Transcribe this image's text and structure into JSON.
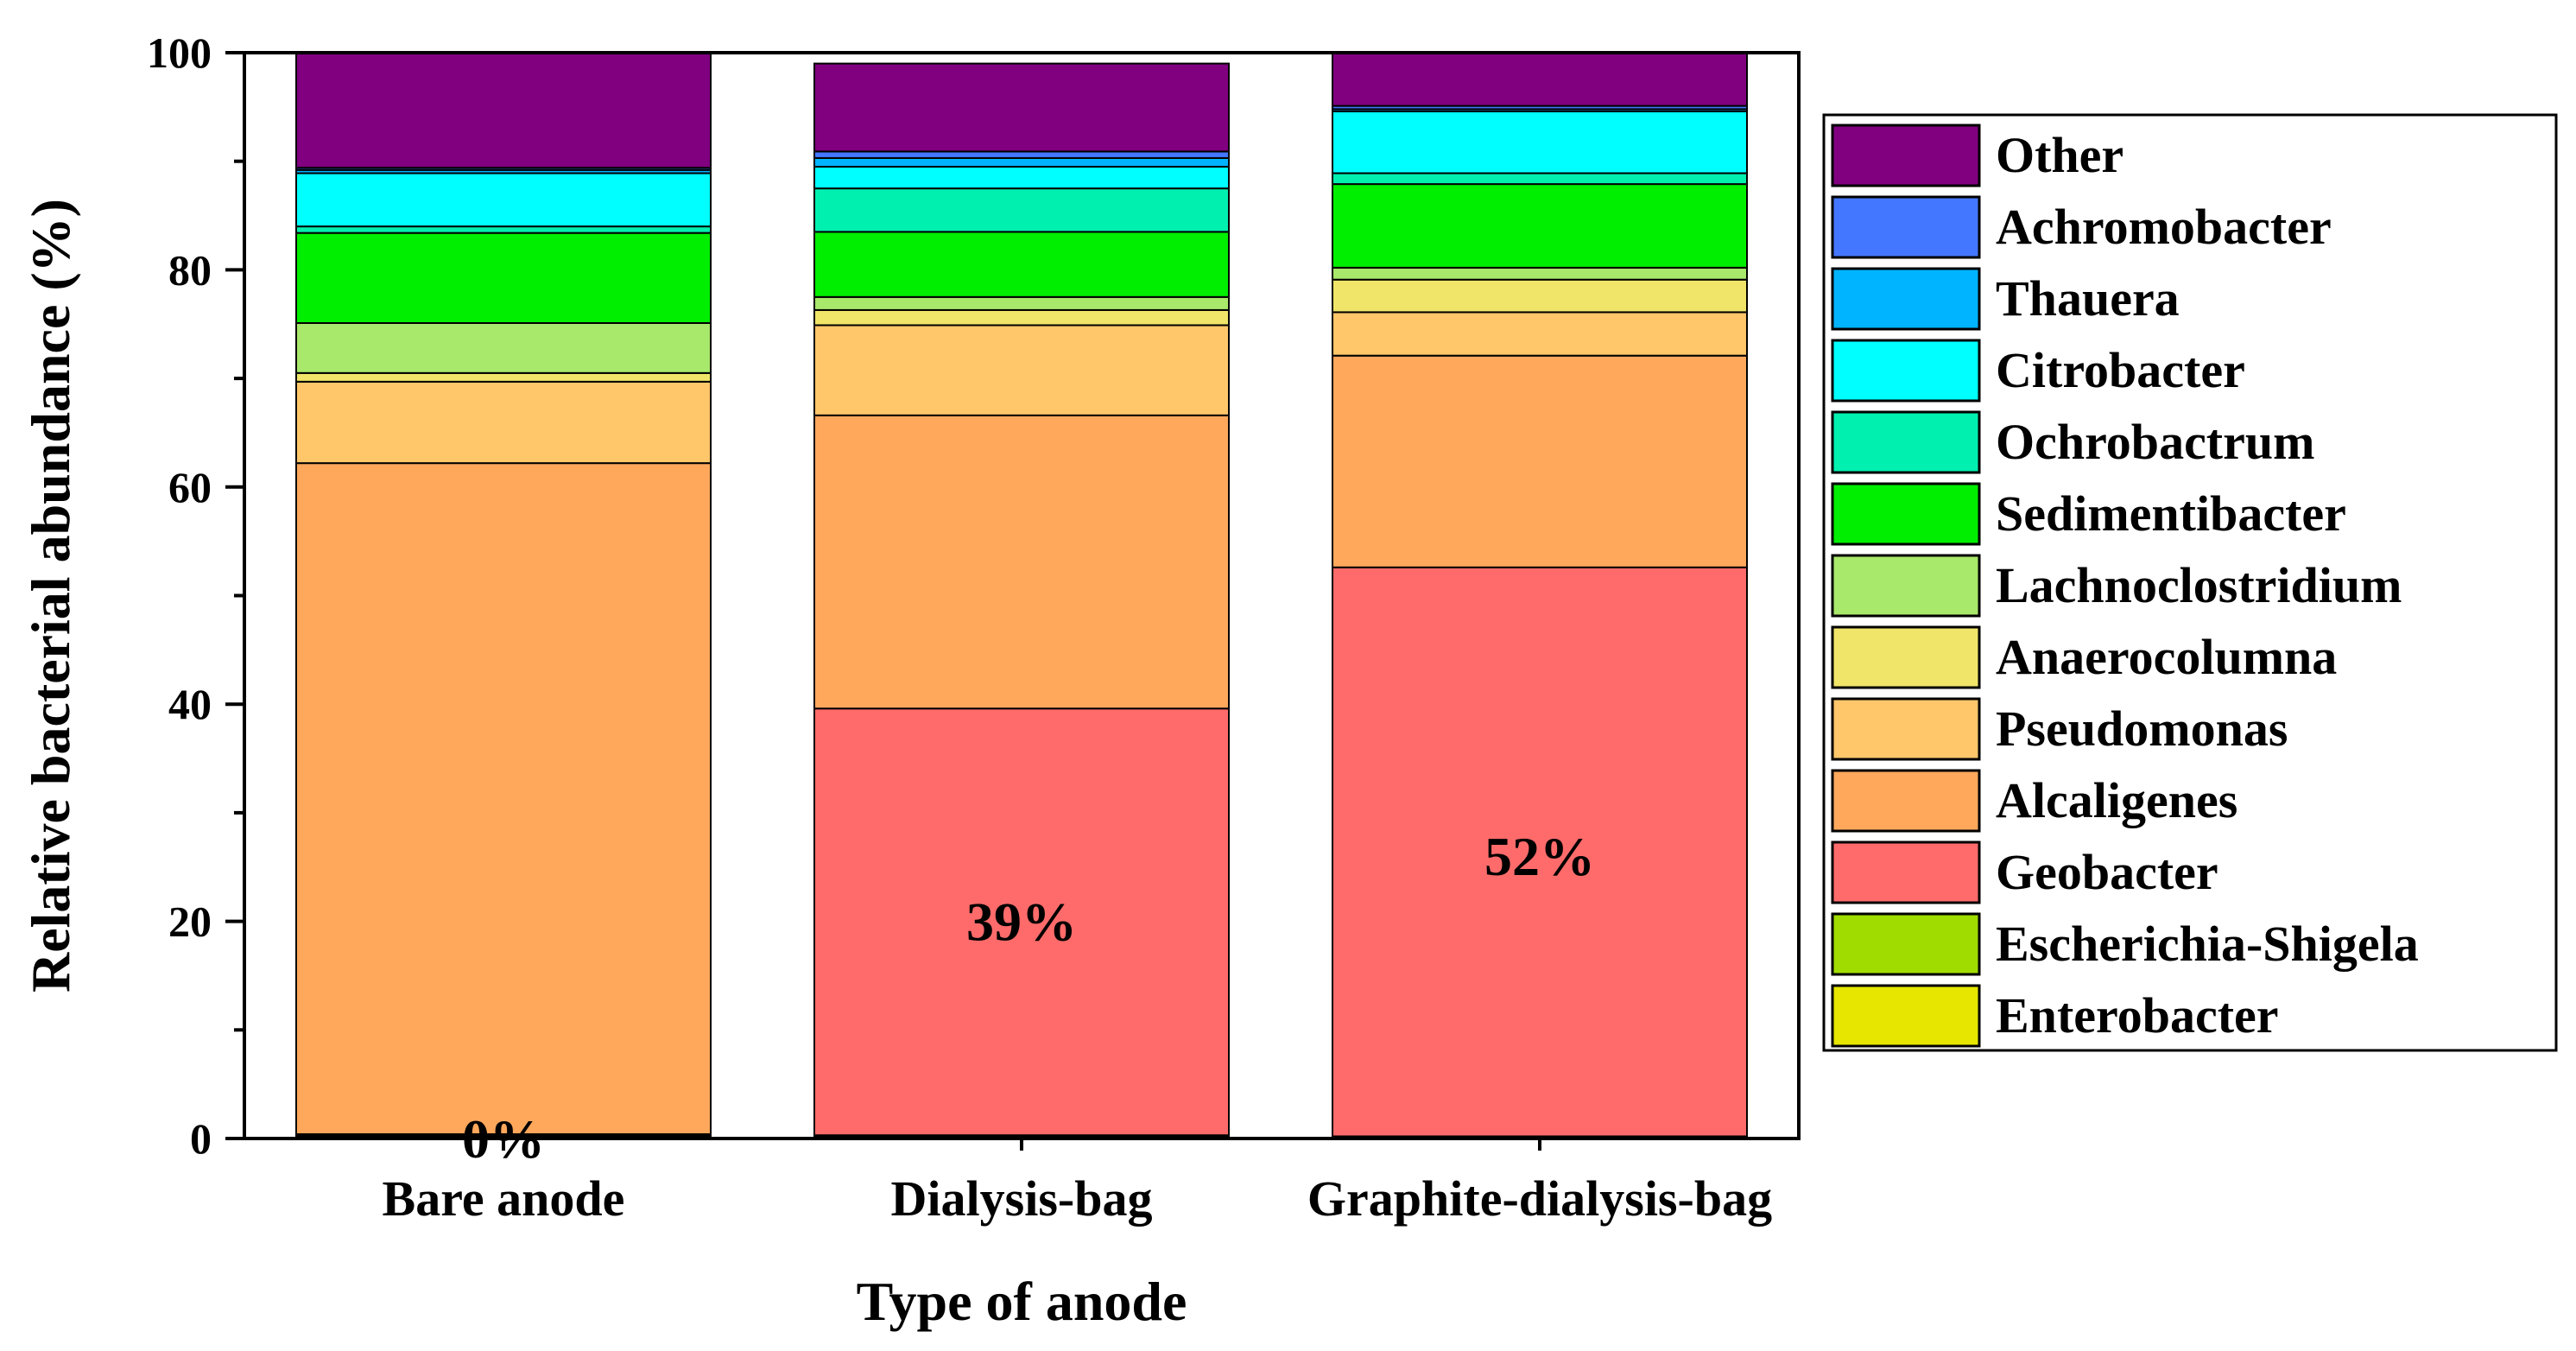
{
  "chart_data": {
    "type": "bar",
    "stacked": true,
    "title": "",
    "xlabel": "Type of anode",
    "ylabel": "Relative bacterial abundance (%)",
    "ylim": [
      0,
      100
    ],
    "yticks": [
      0,
      20,
      40,
      60,
      80,
      100
    ],
    "legend_position": "right",
    "categories": [
      "Bare anode",
      "Dialysis-bag",
      "Graphite-dialysis-bag"
    ],
    "series": [
      {
        "name": "Enterobacter",
        "color": "#E6E600",
        "values": [
          0.2,
          0.2,
          0.1
        ]
      },
      {
        "name": "Escherichia-Shigela",
        "color": "#A0DC00",
        "values": [
          0.1,
          0.1,
          0.1
        ]
      },
      {
        "name": "Geobacter",
        "color": "#FF6B6B",
        "values": [
          0.1,
          39.3,
          52.4
        ]
      },
      {
        "name": "Alcaligenes",
        "color": "#FFA85C",
        "values": [
          61.8,
          27.0,
          19.5
        ]
      },
      {
        "name": "Pseudomonas",
        "color": "#FFC76A",
        "values": [
          7.5,
          8.3,
          4.0
        ]
      },
      {
        "name": "Anaerocolumna",
        "color": "#F0E568",
        "values": [
          0.8,
          1.4,
          3.0
        ]
      },
      {
        "name": "Lachnoclostridium",
        "color": "#A8E86A",
        "values": [
          4.6,
          1.2,
          1.1
        ]
      },
      {
        "name": "Sedimentibacter",
        "color": "#00EE00",
        "values": [
          8.3,
          6.0,
          7.7
        ]
      },
      {
        "name": "Ochrobactrum",
        "color": "#00F0B0",
        "values": [
          0.6,
          4.0,
          1.0
        ]
      },
      {
        "name": "Citrobacter",
        "color": "#00FFFF",
        "values": [
          4.9,
          2.0,
          5.7
        ]
      },
      {
        "name": "Thauera",
        "color": "#00B4FF",
        "values": [
          0.3,
          0.8,
          0.2
        ]
      },
      {
        "name": "Achromobacter",
        "color": "#4477FF",
        "values": [
          0.2,
          0.6,
          0.3
        ]
      },
      {
        "name": "Other",
        "color": "#800080",
        "values": [
          10.6,
          8.1,
          4.9
        ]
      }
    ],
    "legend_order": [
      "Other",
      "Achromobacter",
      "Thauera",
      "Citrobacter",
      "Ochrobactrum",
      "Sedimentibacter",
      "Lachnoclostridium",
      "Anaerocolumna",
      "Pseudomonas",
      "Alcaligenes",
      "Geobacter",
      "Escherichia-Shigela",
      "Enterobacter"
    ],
    "annotations": [
      {
        "category": "Bare anode",
        "text": "0%",
        "y": 0
      },
      {
        "category": "Dialysis-bag",
        "text": "39%",
        "y": 20
      },
      {
        "category": "Graphite-dialysis-bag",
        "text": "52%",
        "y": 26
      }
    ]
  }
}
